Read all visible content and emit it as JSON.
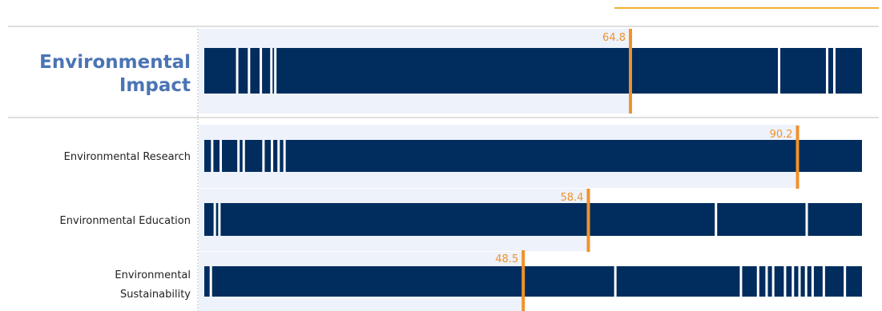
{
  "chart_data": {
    "type": "bar",
    "xlim": [
      0,
      100
    ],
    "colors": {
      "bar": "#002d5e",
      "marker": "#f0922b",
      "highlight": "#eef2fa",
      "separator": "#d4d4d4",
      "main_label": "#4a74b4"
    },
    "rows": [
      {
        "name_lines": [
          "Environmental",
          "Impact"
        ],
        "primary": true,
        "marker_value": 64.8,
        "marker_label": "64.8",
        "gaps": [
          5.0,
          6.8,
          8.6,
          10.2,
          10.8,
          87.4,
          94.7,
          95.8
        ]
      },
      {
        "name_lines": [
          "Environmental Research"
        ],
        "primary": false,
        "marker_value": 90.2,
        "marker_label": "90.2",
        "gaps": [
          1.2,
          2.5,
          5.2,
          6.0,
          9.0,
          10.3,
          11.3,
          12.2
        ]
      },
      {
        "name_lines": [
          "Environmental Education"
        ],
        "primary": false,
        "marker_value": 58.4,
        "marker_label": "58.4",
        "gaps": [
          1.6,
          2.3,
          77.8,
          91.6
        ]
      },
      {
        "name_lines": [
          "Environmental",
          "Sustainability"
        ],
        "primary": false,
        "marker_value": 48.5,
        "marker_label": "48.5",
        "gaps": [
          1.0,
          62.5,
          81.6,
          84.2,
          85.5,
          86.5,
          88.3,
          89.5,
          90.5,
          91.5,
          92.5,
          94.2,
          97.4
        ]
      }
    ]
  }
}
